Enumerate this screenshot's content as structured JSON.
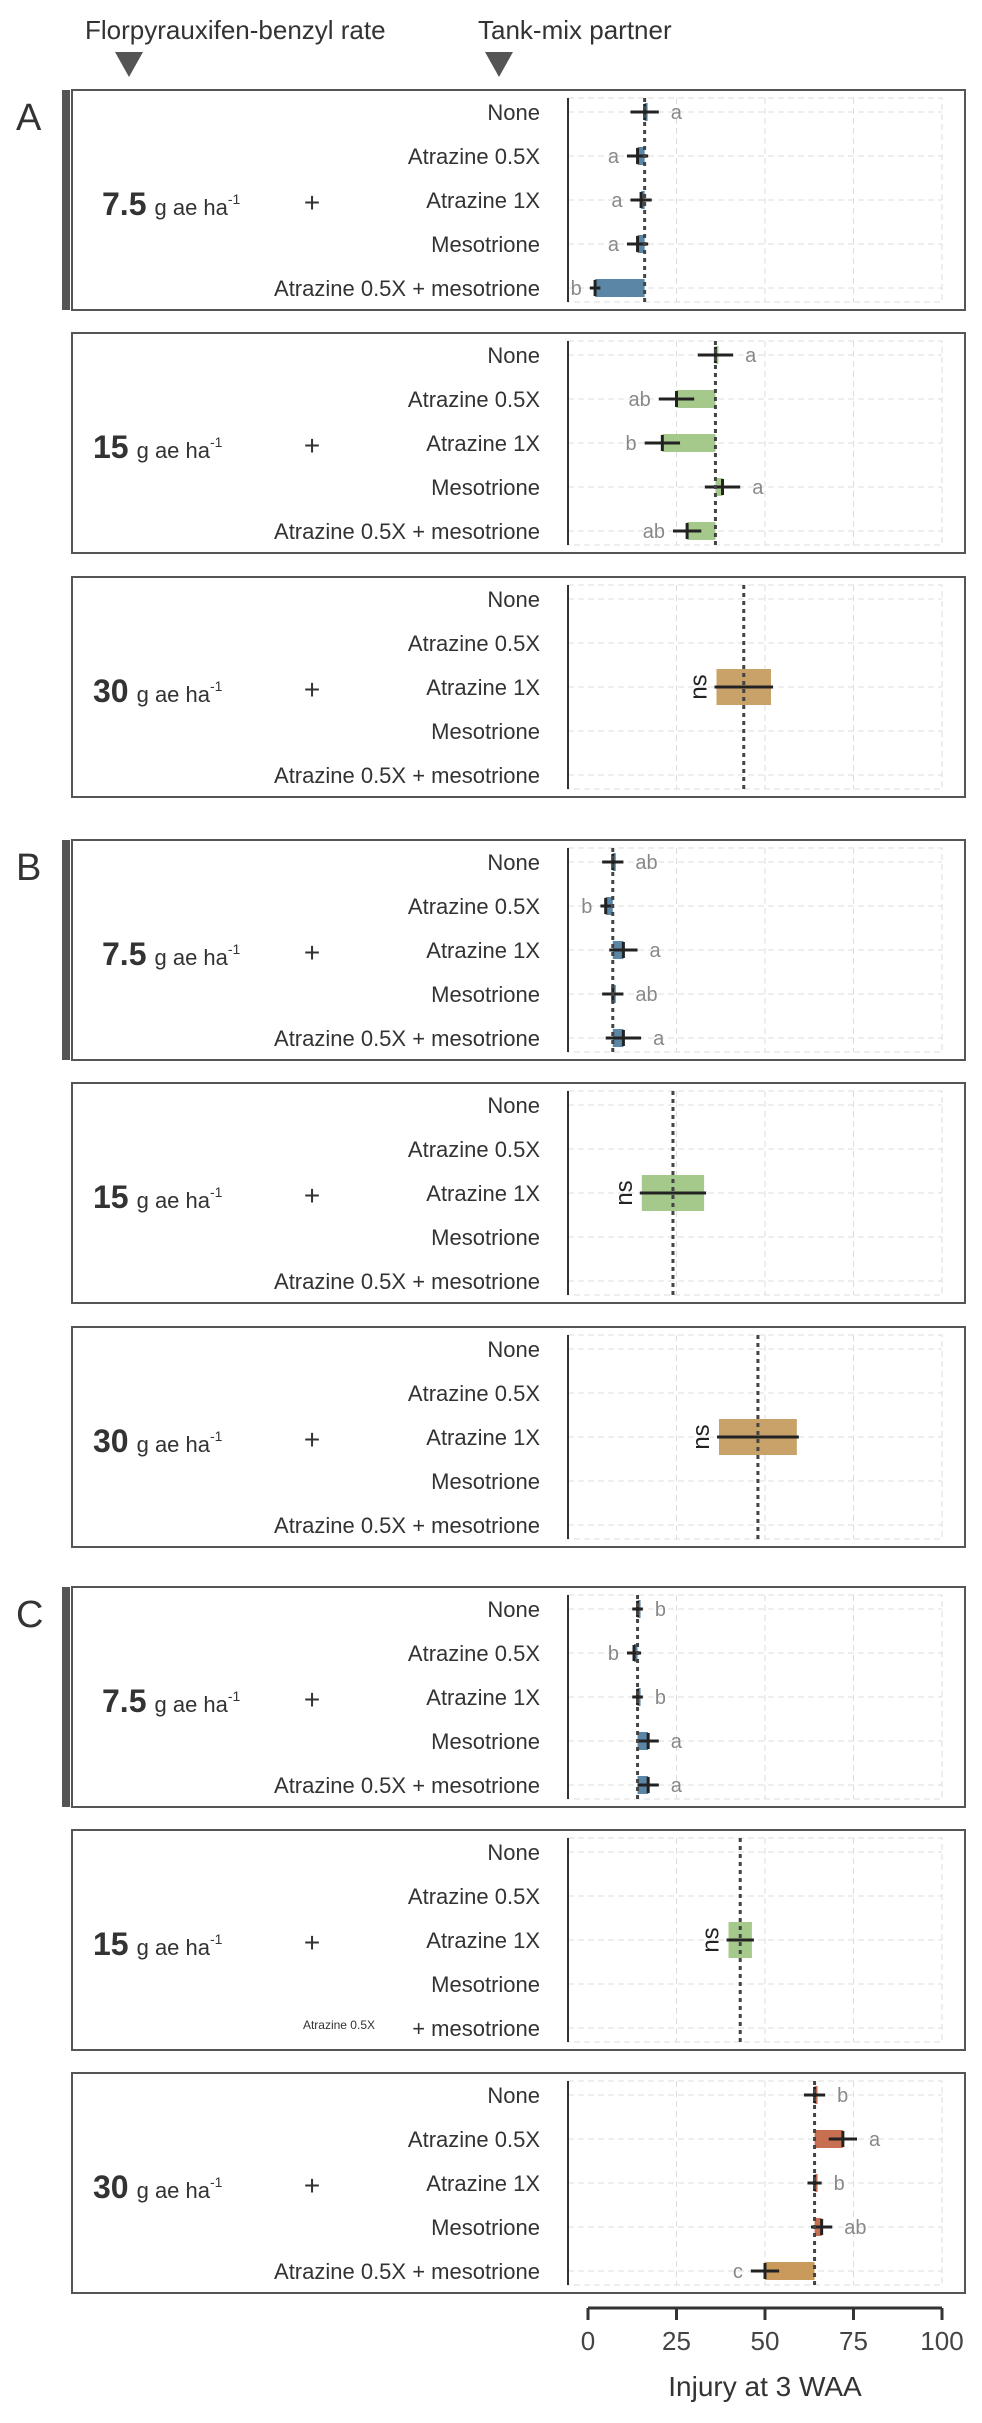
{
  "header": {
    "rate_label": "Florpyrauxifen-benzyl rate",
    "partner_label": "Tank-mix partner"
  },
  "plus_sign": "+",
  "rate_unit_text": "g ae ha",
  "rate_unit_superscript": "-1",
  "colors": {
    "rate_7_5": "#5c86a6",
    "rate_15": "#a5c98a",
    "rate_30": "#c9a26a",
    "rate_30_C": "#c86f52",
    "rate_30_C_mix": "#c99a5c",
    "panel_border": "#555555",
    "grid": "#dddddd",
    "letter": "#888888",
    "text": "#333333"
  },
  "chart_data": {
    "type": "bar",
    "title": "",
    "xlabel": "Injury at 3 WAA",
    "ylabel": "",
    "xlim": [
      0,
      100
    ],
    "xticks": [
      0,
      25,
      50,
      75,
      100
    ],
    "categories": [
      "None",
      "Atrazine 0.5X",
      "Atrazine 1X",
      "Mesotrione",
      "Atrazine 0.5X + mesotrione"
    ],
    "letter_ns": "ns",
    "grid": true,
    "sections": [
      {
        "label": "A",
        "panels": [
          {
            "rate": "7.5",
            "mean": 16,
            "ns": false,
            "color_key": "rate_7_5",
            "values": [
              16,
              14,
              15,
              14,
              2
            ],
            "err": [
              4,
              3,
              3,
              3,
              1.5
            ],
            "letters": [
              "a",
              "a",
              "a",
              "a",
              "b"
            ]
          },
          {
            "rate": "15",
            "mean": 36,
            "ns": false,
            "color_key": "rate_15",
            "values": [
              36,
              25,
              21,
              38,
              28
            ],
            "err": [
              5,
              5,
              5,
              5,
              4
            ],
            "letters": [
              "a",
              "ab",
              "b",
              "a",
              "ab"
            ]
          },
          {
            "rate": "30",
            "mean": 44,
            "ns": true,
            "color_key": "rate_30",
            "ns_value": 44,
            "ns_width": 7,
            "values": [],
            "err": [],
            "letters": []
          }
        ]
      },
      {
        "label": "B",
        "panels": [
          {
            "rate": "7.5",
            "mean": 7,
            "ns": false,
            "color_key": "rate_7_5",
            "values": [
              7,
              5,
              10,
              7,
              10
            ],
            "err": [
              3,
              1.5,
              4,
              3,
              5
            ],
            "letters": [
              "ab",
              "b",
              "a",
              "ab",
              "a"
            ]
          },
          {
            "rate": "15",
            "mean": 24,
            "ns": true,
            "color_key": "rate_15",
            "ns_value": 24,
            "ns_width": 8,
            "values": [],
            "err": [],
            "letters": []
          },
          {
            "rate": "30",
            "mean": 48,
            "ns": true,
            "color_key": "rate_30",
            "ns_value": 48,
            "ns_width": 10,
            "values": [],
            "err": [],
            "letters": []
          }
        ]
      },
      {
        "label": "C",
        "panels": [
          {
            "rate": "7.5",
            "mean": 14,
            "ns": false,
            "color_key": "rate_7_5",
            "values": [
              14,
              13,
              14,
              17,
              17
            ],
            "err": [
              1.5,
              2,
              1.5,
              3,
              3
            ],
            "letters": [
              "b",
              "b",
              "b",
              "a",
              "a"
            ]
          },
          {
            "rate": "15",
            "mean": 43,
            "ns": true,
            "color_key": "rate_15",
            "ns_value": 43,
            "ns_width": 3,
            "values": [],
            "err": [],
            "letters": []
          },
          {
            "rate": "30",
            "mean": 64,
            "ns": false,
            "color_key": "rate_30_C",
            "values": [
              64,
              72,
              64,
              66,
              50
            ],
            "err": [
              3,
              4,
              2,
              3,
              4
            ],
            "letters": [
              "b",
              "a",
              "b",
              "ab",
              "c"
            ]
          }
        ]
      }
    ]
  }
}
